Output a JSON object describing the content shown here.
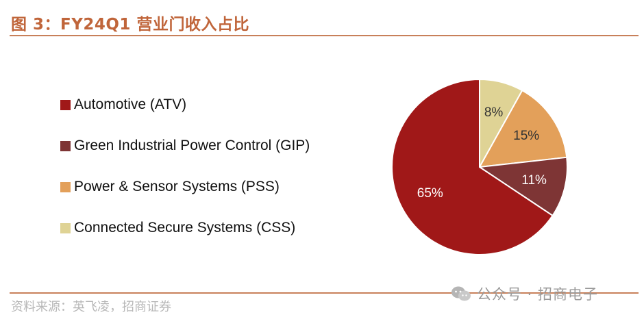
{
  "header": {
    "title": "图 3：FY24Q1 营业门收入占比"
  },
  "footer": {
    "source": "资料来源：英飞凌，招商证券",
    "watermark": "公众号 · 招商电子"
  },
  "chart_data": {
    "type": "pie",
    "title": "图 3：FY24Q1 营业门收入占比",
    "legend_position": "left",
    "slices": [
      {
        "name": "Automotive (ATV)",
        "value": 65,
        "label": "65%",
        "color": "#a01818"
      },
      {
        "name": "Green Industrial Power Control (GIP)",
        "value": 11,
        "label": "11%",
        "color": "#7e3535"
      },
      {
        "name": "Power & Sensor Systems (PSS)",
        "value": 15,
        "label": "15%",
        "color": "#e3a05a"
      },
      {
        "name": "Connected Secure Systems (CSS)",
        "value": 8,
        "label": "8%",
        "color": "#dfd395"
      }
    ]
  }
}
